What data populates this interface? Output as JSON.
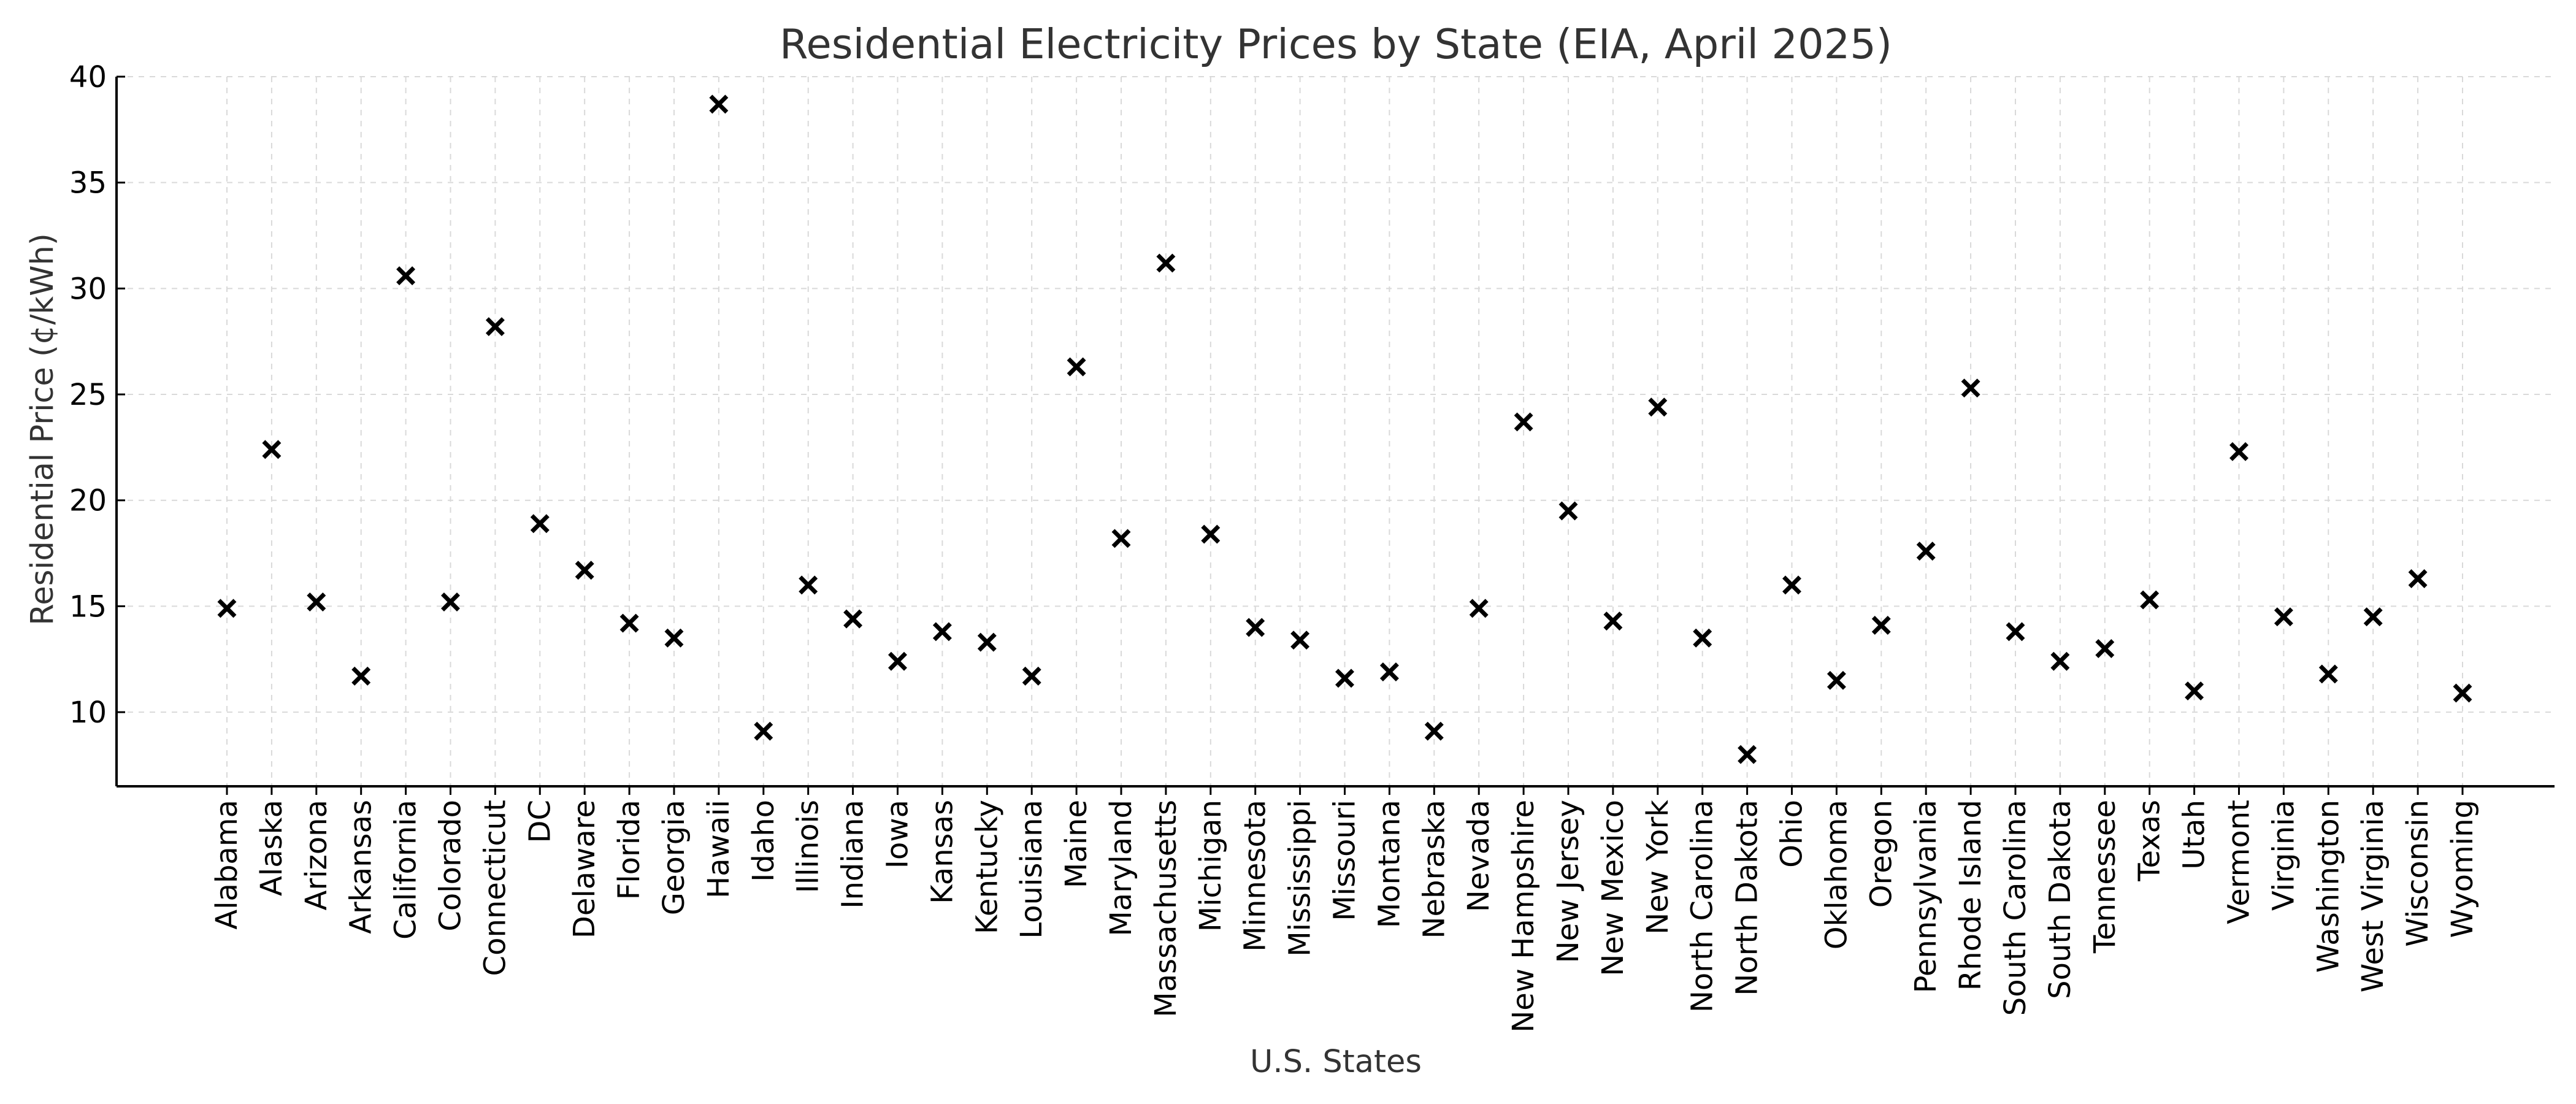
{
  "colors": {
    "background": "#ffffff",
    "marker": "#000000",
    "grid": "#d9d9d9",
    "text": "#333333"
  },
  "chart_data": {
    "type": "scatter",
    "marker": "x",
    "title": "Residential Electricity Prices by State (EIA, April 2025)",
    "xlabel": "U.S. States",
    "ylabel": "Residential Price (¢/kWh)",
    "ylim": [
      6.5,
      40
    ],
    "yticks": [
      10,
      15,
      20,
      25,
      30,
      35,
      40
    ],
    "grid": true,
    "categories": [
      "Alabama",
      "Alaska",
      "Arizona",
      "Arkansas",
      "California",
      "Colorado",
      "Connecticut",
      "DC",
      "Delaware",
      "Florida",
      "Georgia",
      "Hawaii",
      "Idaho",
      "Illinois",
      "Indiana",
      "Iowa",
      "Kansas",
      "Kentucky",
      "Louisiana",
      "Maine",
      "Maryland",
      "Massachusetts",
      "Michigan",
      "Minnesota",
      "Mississippi",
      "Missouri",
      "Montana",
      "Nebraska",
      "Nevada",
      "New Hampshire",
      "New Jersey",
      "New Mexico",
      "New York",
      "North Carolina",
      "North Dakota",
      "Ohio",
      "Oklahoma",
      "Oregon",
      "Pennsylvania",
      "Rhode Island",
      "South Carolina",
      "South Dakota",
      "Tennessee",
      "Texas",
      "Utah",
      "Vermont",
      "Virginia",
      "Washington",
      "West Virginia",
      "Wisconsin",
      "Wyoming"
    ],
    "values": [
      14.9,
      22.4,
      15.2,
      11.7,
      30.6,
      15.2,
      28.2,
      18.9,
      16.7,
      14.2,
      13.5,
      38.7,
      9.1,
      16.0,
      14.4,
      12.4,
      13.8,
      13.3,
      11.7,
      26.3,
      18.2,
      31.2,
      18.4,
      14.0,
      13.4,
      11.6,
      11.9,
      9.1,
      14.9,
      23.7,
      19.5,
      14.3,
      24.4,
      13.5,
      8.0,
      16.0,
      11.5,
      14.1,
      17.6,
      25.3,
      13.8,
      12.4,
      13.0,
      15.3,
      11.0,
      22.3,
      14.5,
      11.8,
      14.5,
      16.3,
      10.9
    ]
  }
}
